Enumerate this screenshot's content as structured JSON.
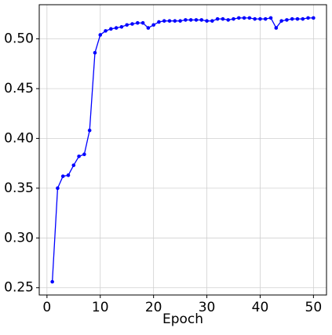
{
  "chart_data": {
    "type": "line",
    "xlabel": "Epoch",
    "x": [
      1,
      2,
      3,
      4,
      5,
      6,
      7,
      8,
      9,
      10,
      11,
      12,
      13,
      14,
      15,
      16,
      17,
      18,
      19,
      20,
      21,
      22,
      23,
      24,
      25,
      26,
      27,
      28,
      29,
      30,
      31,
      32,
      33,
      34,
      35,
      36,
      37,
      38,
      39,
      40,
      41,
      42,
      43,
      44,
      45,
      46,
      47,
      48,
      49,
      50
    ],
    "series": [
      {
        "color": "#0000ff",
        "values": [
          0.256,
          0.35,
          0.362,
          0.363,
          0.373,
          0.382,
          0.384,
          0.408,
          0.486,
          0.504,
          0.508,
          0.51,
          0.511,
          0.512,
          0.514,
          0.515,
          0.516,
          0.516,
          0.511,
          0.514,
          0.517,
          0.518,
          0.518,
          0.518,
          0.518,
          0.519,
          0.519,
          0.519,
          0.519,
          0.518,
          0.518,
          0.52,
          0.52,
          0.519,
          0.52,
          0.521,
          0.521,
          0.521,
          0.52,
          0.52,
          0.52,
          0.521,
          0.511,
          0.518,
          0.519,
          0.52,
          0.52,
          0.52,
          0.521,
          0.521
        ]
      }
    ],
    "xlim": [
      -1.45,
      52.45
    ],
    "xticks": [
      0,
      10,
      20,
      30,
      40,
      50
    ],
    "ylim": [
      0.2427,
      0.5343
    ],
    "yticks": [
      0.25,
      {
        "value": 0.3,
        "label": "0.30"
      },
      0.35,
      {
        "value": 0.4,
        "label": "0.40"
      },
      0.45,
      {
        "value": 0.5,
        "label": "0.50"
      }
    ],
    "grid": true
  }
}
